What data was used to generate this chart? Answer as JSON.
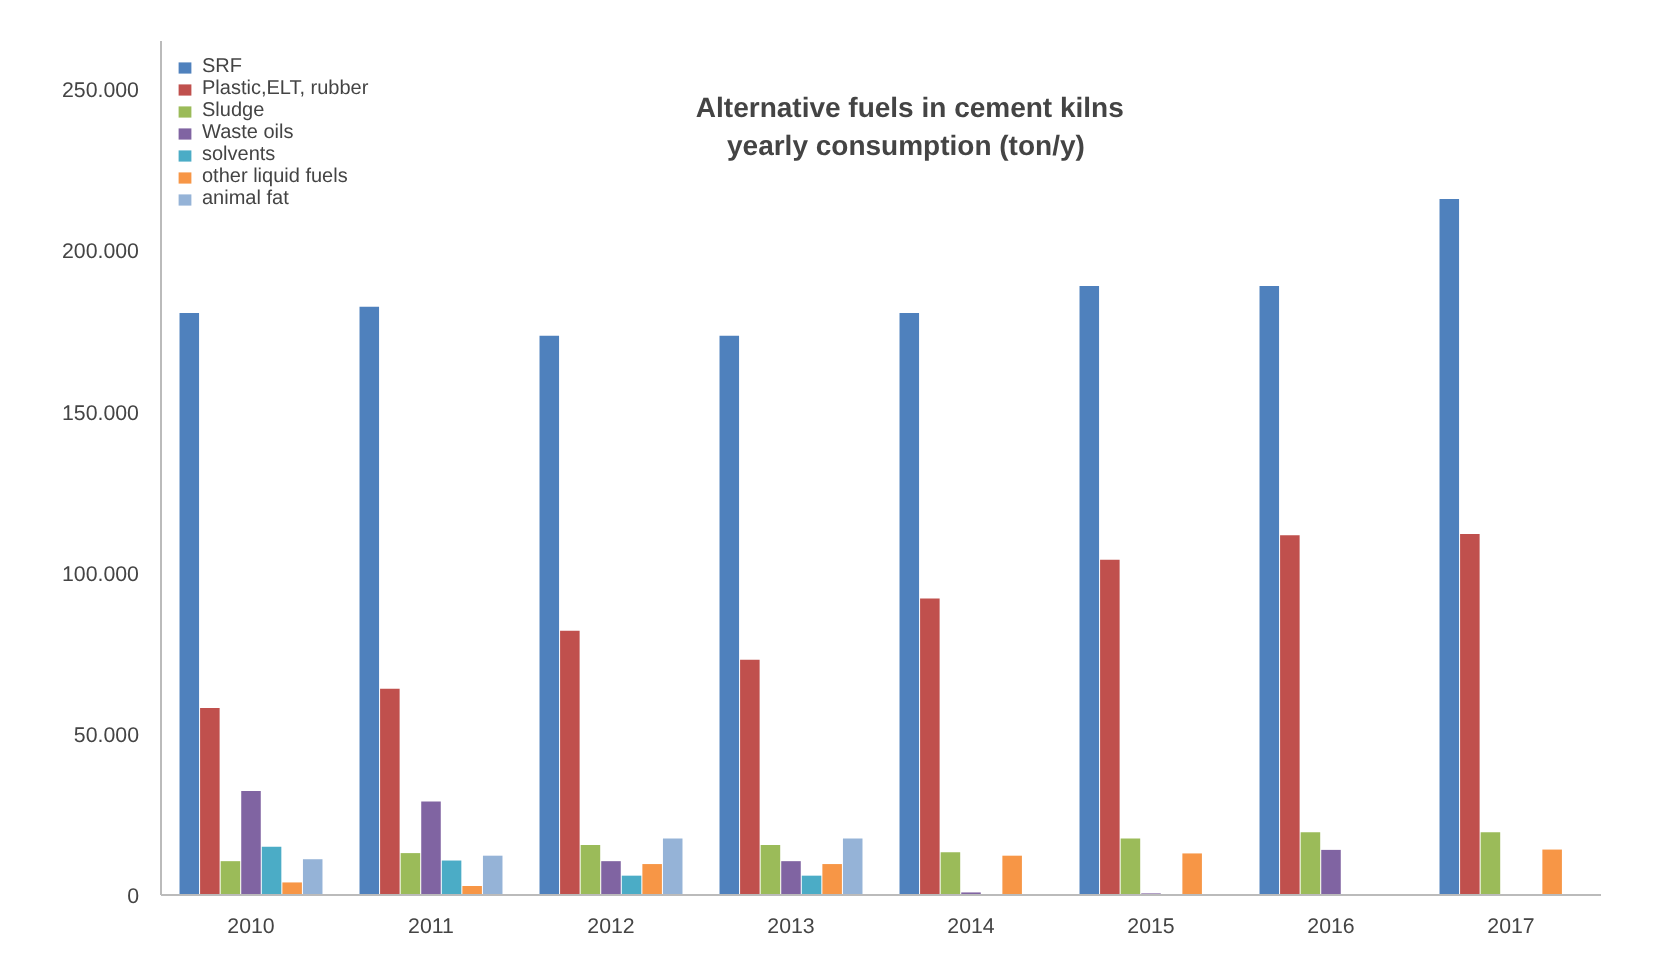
{
  "chart_data": {
    "type": "bar",
    "title": "Alternative fuels in cement kilns\nyearly consumption  (ton/y)",
    "categories": [
      "2010",
      "2011",
      "2012",
      "2013",
      "2014",
      "2015",
      "2016",
      "2017"
    ],
    "series": [
      {
        "name": "SRF",
        "color": "#4f81bd",
        "values": [
          180600,
          182500,
          173500,
          173500,
          180600,
          189000,
          189000,
          216000
        ]
      },
      {
        "name": "Plastic,ELT, rubber",
        "color": "#c0504d",
        "values": [
          58000,
          64000,
          82000,
          73000,
          92000,
          104000,
          111600,
          112000
        ]
      },
      {
        "name": "Sludge",
        "color": "#9bbb59",
        "values": [
          10500,
          13000,
          15500,
          15500,
          13300,
          17500,
          19500,
          19500
        ]
      },
      {
        "name": "Waste oils",
        "color": "#8064a2",
        "values": [
          32300,
          29000,
          10500,
          10500,
          800,
          500,
          14000,
          null
        ]
      },
      {
        "name": "solvents",
        "color": "#4bacc6",
        "values": [
          15000,
          10700,
          6000,
          6000,
          null,
          null,
          null,
          null
        ]
      },
      {
        "name": "other liquid fuels",
        "color": "#f79646",
        "values": [
          3900,
          2800,
          9600,
          9600,
          12200,
          12900,
          null,
          14100
        ]
      },
      {
        "name": "animal fat",
        "color": "#95b3d7",
        "values": [
          11100,
          12200,
          17500,
          17500,
          null,
          null,
          null,
          null
        ]
      }
    ],
    "ylim": [
      0,
      265000
    ],
    "yticks": [
      {
        "value": 0,
        "label": "0"
      },
      {
        "value": 50000,
        "label": "50.000"
      },
      {
        "value": 100000,
        "label": "100.000"
      },
      {
        "value": 150000,
        "label": "150.000"
      },
      {
        "value": 200000,
        "label": "200.000"
      },
      {
        "value": 250000,
        "label": "250.000"
      }
    ],
    "grid": false,
    "legend": "top left"
  }
}
